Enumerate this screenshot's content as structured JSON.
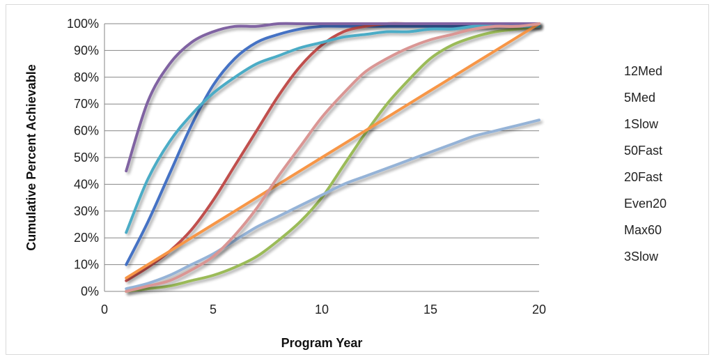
{
  "chart_data": {
    "type": "line",
    "xlabel": "Program Year",
    "ylabel": "Cumulative Percent Achievable",
    "xlim": [
      0,
      20
    ],
    "ylim": [
      0,
      100
    ],
    "x_ticks": [
      "0",
      "5",
      "10",
      "15",
      "20"
    ],
    "y_ticks": [
      "0%",
      "10%",
      "20%",
      "30%",
      "40%",
      "50%",
      "60%",
      "70%",
      "80%",
      "90%",
      "100%"
    ],
    "grid": "horizontal",
    "legend_position": "right",
    "x": [
      1,
      2,
      3,
      4,
      5,
      6,
      7,
      8,
      9,
      10,
      11,
      12,
      13,
      14,
      15,
      16,
      17,
      18,
      19,
      20
    ],
    "series": [
      {
        "name": "12Med",
        "color": "#4472c4",
        "values": [
          10,
          26,
          44,
          62,
          77,
          87,
          93,
          96,
          98,
          99,
          99,
          99,
          99,
          99,
          99,
          99,
          99,
          99,
          99,
          99
        ]
      },
      {
        "name": "5Med",
        "color": "#c0504d",
        "values": [
          4,
          9,
          15,
          23,
          34,
          47,
          60,
          73,
          84,
          92,
          97,
          99,
          100,
          100,
          100,
          100,
          100,
          100,
          100,
          100
        ]
      },
      {
        "name": "1Slow",
        "color": "#9bbb59",
        "values": [
          0,
          1,
          2,
          4,
          6,
          9,
          13,
          19,
          26,
          35,
          47,
          59,
          70,
          79,
          87,
          92,
          95,
          97,
          98,
          99
        ]
      },
      {
        "name": "50Fast",
        "color": "#8064a2",
        "values": [
          45,
          71,
          85,
          93,
          97,
          99,
          99,
          100,
          100,
          100,
          100,
          100,
          100,
          100,
          100,
          100,
          100,
          100,
          100,
          100
        ]
      },
      {
        "name": "20Fast",
        "color": "#4bacc6",
        "values": [
          22,
          42,
          56,
          66,
          74,
          80,
          85,
          88,
          91,
          93,
          95,
          96,
          97,
          97,
          98,
          98,
          99,
          99,
          99,
          99
        ]
      },
      {
        "name": "Even20",
        "color": "#f79646",
        "values": [
          5,
          10,
          15,
          20,
          25,
          30,
          35,
          40,
          45,
          50,
          55,
          60,
          65,
          70,
          75,
          80,
          85,
          90,
          95,
          100
        ]
      },
      {
        "name": "Max60",
        "color": "#95b3d7",
        "values": [
          1,
          3,
          6,
          10,
          14,
          19,
          24,
          28,
          32,
          36,
          40,
          43,
          46,
          49,
          52,
          55,
          58,
          60,
          62,
          64
        ]
      },
      {
        "name": "3Slow",
        "color": "#da9694",
        "values": [
          0,
          2,
          4,
          8,
          13,
          21,
          31,
          43,
          54,
          65,
          74,
          82,
          87,
          91,
          94,
          96,
          98,
          99,
          99,
          100
        ]
      }
    ]
  }
}
